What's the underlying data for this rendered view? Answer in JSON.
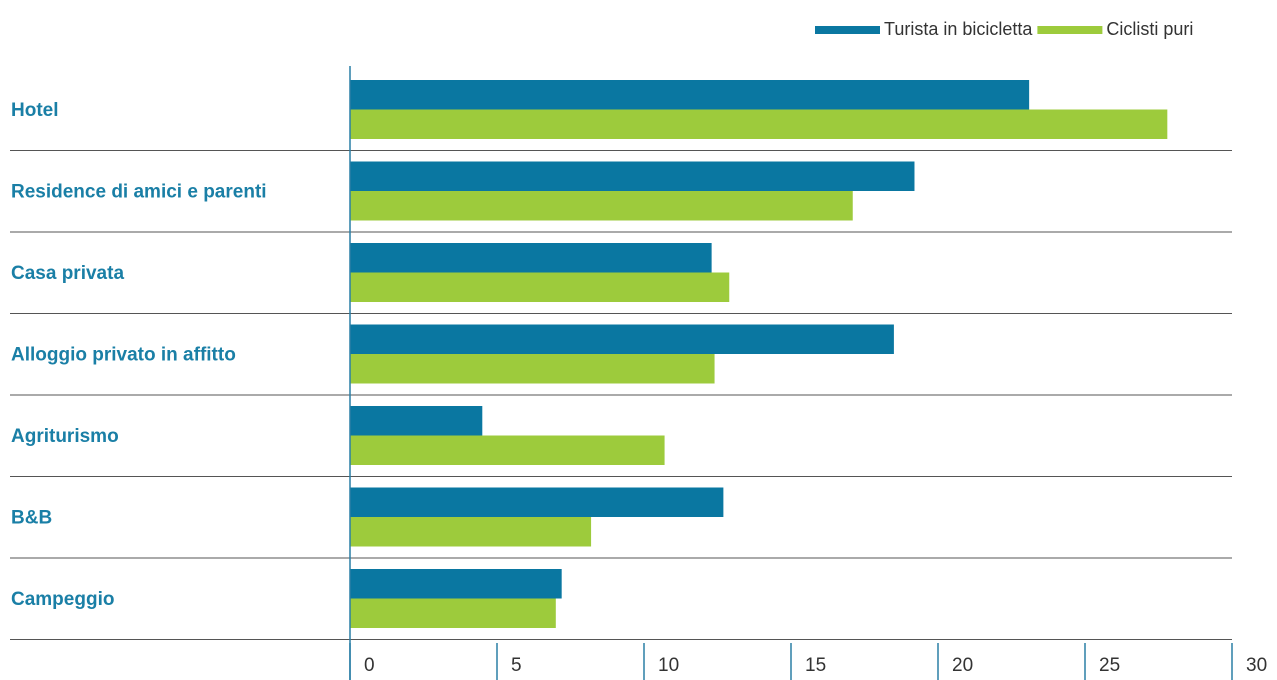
{
  "chart_data": {
    "type": "bar",
    "orientation": "horizontal",
    "categories": [
      "Hotel",
      "Residence di amici e parenti",
      "Casa privata",
      "Alloggio privato in affitto",
      "Agriturismo",
      "B&B",
      "Campeggio"
    ],
    "series": [
      {
        "name": "Turista in bicicletta",
        "color": "#0a77a1",
        "values": [
          23.1,
          19.2,
          12.3,
          18.5,
          4.5,
          12.7,
          7.2
        ]
      },
      {
        "name": "Ciclisti puri",
        "color": "#9dcb3c",
        "values": [
          27.8,
          17.1,
          12.9,
          12.4,
          10.7,
          8.2,
          7.0
        ]
      }
    ],
    "xlim": [
      0,
      30
    ],
    "xticks": [
      0,
      5,
      10,
      15,
      20,
      25,
      30
    ],
    "legend": "top-right"
  }
}
